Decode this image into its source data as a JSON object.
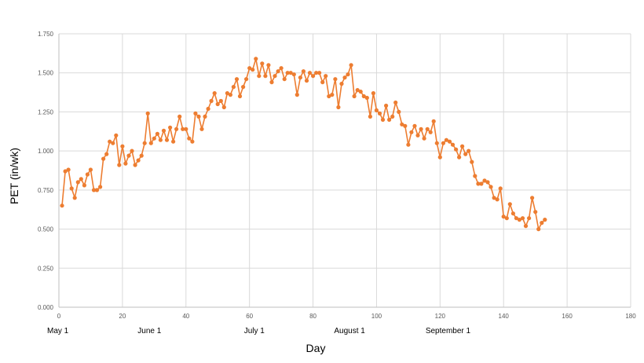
{
  "chart_data": {
    "type": "line",
    "title": "",
    "xlabel": "Day",
    "ylabel": "PET (in/wk)",
    "xlim": [
      0,
      180
    ],
    "ylim": [
      0.0,
      1.75
    ],
    "x_ticks": [
      0,
      20,
      40,
      60,
      80,
      100,
      120,
      140,
      160,
      180
    ],
    "x_tick_labels": [
      "0",
      "20",
      "40",
      "60",
      "80",
      "100",
      "120",
      "140",
      "160",
      "180"
    ],
    "y_ticks": [
      0.0,
      0.25,
      0.5,
      0.75,
      1.0,
      1.25,
      1.5,
      1.75
    ],
    "y_tick_labels": [
      "0.000",
      "0.250",
      "0.500",
      "0.750",
      "1.000",
      "1.250",
      "1.500",
      "1.750"
    ],
    "month_labels": [
      {
        "day": 0,
        "label": "May 1"
      },
      {
        "day": 29,
        "label": "June 1"
      },
      {
        "day": 62,
        "label": "July 1"
      },
      {
        "day": 92,
        "label": "August 1"
      },
      {
        "day": 123,
        "label": "September 1"
      }
    ],
    "grid": true,
    "series": [
      {
        "name": "PET",
        "color": "#ed7d31",
        "x": [
          1,
          2,
          3,
          4,
          5,
          6,
          7,
          8,
          9,
          10,
          11,
          12,
          13,
          14,
          15,
          16,
          17,
          18,
          19,
          20,
          21,
          22,
          23,
          24,
          25,
          26,
          27,
          28,
          29,
          30,
          31,
          32,
          33,
          34,
          35,
          36,
          37,
          38,
          39,
          40,
          41,
          42,
          43,
          44,
          45,
          46,
          47,
          48,
          49,
          50,
          51,
          52,
          53,
          54,
          55,
          56,
          57,
          58,
          59,
          60,
          61,
          62,
          63,
          64,
          65,
          66,
          67,
          68,
          69,
          70,
          71,
          72,
          73,
          74,
          75,
          76,
          77,
          78,
          79,
          80,
          81,
          82,
          83,
          84,
          85,
          86,
          87,
          88,
          89,
          90,
          91,
          92,
          93,
          94,
          95,
          96,
          97,
          98,
          99,
          100,
          101,
          102,
          103,
          104,
          105,
          106,
          107,
          108,
          109,
          110,
          111,
          112,
          113,
          114,
          115,
          116,
          117,
          118,
          119,
          120,
          121,
          122,
          123,
          124,
          125,
          126,
          127,
          128,
          129,
          130,
          131,
          132,
          133,
          134,
          135,
          136,
          137,
          138,
          139,
          140,
          141,
          142,
          143,
          144,
          145,
          146,
          147,
          148,
          149,
          150,
          151,
          152,
          153
        ],
        "values": [
          0.65,
          0.87,
          0.88,
          0.76,
          0.7,
          0.8,
          0.82,
          0.78,
          0.85,
          0.88,
          0.75,
          0.75,
          0.77,
          0.95,
          0.98,
          1.06,
          1.05,
          1.1,
          0.91,
          1.03,
          0.92,
          0.97,
          1.0,
          0.91,
          0.94,
          0.97,
          1.05,
          1.24,
          1.05,
          1.08,
          1.11,
          1.07,
          1.13,
          1.07,
          1.15,
          1.06,
          1.14,
          1.22,
          1.14,
          1.14,
          1.08,
          1.06,
          1.24,
          1.22,
          1.14,
          1.22,
          1.27,
          1.32,
          1.37,
          1.3,
          1.32,
          1.28,
          1.37,
          1.36,
          1.41,
          1.46,
          1.35,
          1.41,
          1.46,
          1.53,
          1.52,
          1.59,
          1.48,
          1.56,
          1.48,
          1.55,
          1.44,
          1.48,
          1.51,
          1.53,
          1.46,
          1.5,
          1.5,
          1.49,
          1.36,
          1.47,
          1.51,
          1.45,
          1.5,
          1.48,
          1.5,
          1.5,
          1.44,
          1.48,
          1.35,
          1.36,
          1.46,
          1.28,
          1.43,
          1.47,
          1.49,
          1.55,
          1.35,
          1.39,
          1.38,
          1.35,
          1.34,
          1.22,
          1.37,
          1.26,
          1.24,
          1.2,
          1.29,
          1.2,
          1.22,
          1.31,
          1.25,
          1.17,
          1.16,
          1.04,
          1.12,
          1.16,
          1.1,
          1.14,
          1.08,
          1.14,
          1.12,
          1.19,
          1.05,
          0.96,
          1.05,
          1.07,
          1.06,
          1.04,
          1.01,
          0.96,
          1.03,
          0.98,
          1.0,
          0.93,
          0.84,
          0.79,
          0.79,
          0.81,
          0.8,
          0.77,
          0.7,
          0.69,
          0.76,
          0.58,
          0.57,
          0.66,
          0.6,
          0.57,
          0.56,
          0.57,
          0.52,
          0.57,
          0.7,
          0.61,
          0.5,
          0.54,
          0.56
        ]
      }
    ]
  }
}
